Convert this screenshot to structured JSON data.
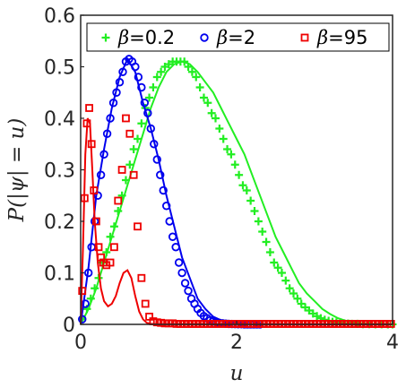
{
  "chart_data": {
    "type": "scatter",
    "xlabel": "u",
    "ylabel": "P(|ψ| = u)",
    "xlim": [
      0,
      4
    ],
    "ylim": [
      0,
      0.6
    ],
    "xticks": [
      "0",
      "2",
      "4"
    ],
    "yticks": [
      "0",
      "0.1",
      "0.2",
      "0.3",
      "0.4",
      "0.5",
      "0.6"
    ],
    "grid": false,
    "legend_placement": "top",
    "series": [
      {
        "name": "β=0.2",
        "marker": "plus",
        "color": "#22ee22",
        "points": [
          [
            0.02,
            0.01
          ],
          [
            0.08,
            0.03
          ],
          [
            0.13,
            0.05
          ],
          [
            0.18,
            0.07
          ],
          [
            0.23,
            0.09
          ],
          [
            0.28,
            0.12
          ],
          [
            0.33,
            0.14
          ],
          [
            0.38,
            0.17
          ],
          [
            0.43,
            0.19
          ],
          [
            0.48,
            0.22
          ],
          [
            0.53,
            0.25
          ],
          [
            0.58,
            0.28
          ],
          [
            0.63,
            0.31
          ],
          [
            0.68,
            0.34
          ],
          [
            0.73,
            0.36
          ],
          [
            0.78,
            0.39
          ],
          [
            0.83,
            0.42
          ],
          [
            0.88,
            0.44
          ],
          [
            0.93,
            0.46
          ],
          [
            0.98,
            0.48
          ],
          [
            1.03,
            0.49
          ],
          [
            1.08,
            0.5
          ],
          [
            1.13,
            0.505
          ],
          [
            1.18,
            0.51
          ],
          [
            1.23,
            0.51
          ],
          [
            1.28,
            0.51
          ],
          [
            1.33,
            0.51
          ],
          [
            1.38,
            0.5
          ],
          [
            1.43,
            0.49
          ],
          [
            1.48,
            0.48
          ],
          [
            1.53,
            0.46
          ],
          [
            1.58,
            0.44
          ],
          [
            1.63,
            0.43
          ],
          [
            1.68,
            0.41
          ],
          [
            1.73,
            0.4
          ],
          [
            1.78,
            0.38
          ],
          [
            1.83,
            0.36
          ],
          [
            1.88,
            0.34
          ],
          [
            1.93,
            0.33
          ],
          [
            1.98,
            0.31
          ],
          [
            2.03,
            0.29
          ],
          [
            2.08,
            0.27
          ],
          [
            2.13,
            0.26
          ],
          [
            2.18,
            0.24
          ],
          [
            2.23,
            0.22
          ],
          [
            2.28,
            0.2
          ],
          [
            2.33,
            0.18
          ],
          [
            2.38,
            0.16
          ],
          [
            2.43,
            0.14
          ],
          [
            2.48,
            0.12
          ],
          [
            2.53,
            0.11
          ],
          [
            2.58,
            0.1
          ],
          [
            2.63,
            0.085
          ],
          [
            2.68,
            0.07
          ],
          [
            2.73,
            0.06
          ],
          [
            2.78,
            0.05
          ],
          [
            2.83,
            0.04
          ],
          [
            2.88,
            0.033
          ],
          [
            2.93,
            0.027
          ],
          [
            2.98,
            0.021
          ],
          [
            3.03,
            0.016
          ],
          [
            3.08,
            0.012
          ],
          [
            3.13,
            0.009
          ],
          [
            3.18,
            0.007
          ],
          [
            3.23,
            0.005
          ],
          [
            3.28,
            0.004
          ],
          [
            3.33,
            0.003
          ],
          [
            3.38,
            0.002
          ],
          [
            3.43,
            0.0015
          ],
          [
            3.48,
            0.001
          ],
          [
            3.55,
            0.001
          ],
          [
            3.62,
            0.0005
          ],
          [
            3.7,
            0.0005
          ],
          [
            3.78,
            0.0003
          ],
          [
            3.86,
            0.0002
          ],
          [
            3.94,
            0.0001
          ],
          [
            4.0,
            0.0001
          ]
        ],
        "curve": [
          [
            0,
            0
          ],
          [
            0.1,
            0.03
          ],
          [
            0.2,
            0.07
          ],
          [
            0.3,
            0.12
          ],
          [
            0.4,
            0.17
          ],
          [
            0.5,
            0.22
          ],
          [
            0.6,
            0.27
          ],
          [
            0.7,
            0.32
          ],
          [
            0.8,
            0.37
          ],
          [
            0.9,
            0.42
          ],
          [
            1.0,
            0.46
          ],
          [
            1.1,
            0.49
          ],
          [
            1.2,
            0.505
          ],
          [
            1.3,
            0.51
          ],
          [
            1.4,
            0.505
          ],
          [
            1.5,
            0.49
          ],
          [
            1.6,
            0.47
          ],
          [
            1.7,
            0.45
          ],
          [
            1.8,
            0.42
          ],
          [
            1.9,
            0.39
          ],
          [
            2.0,
            0.36
          ],
          [
            2.1,
            0.33
          ],
          [
            2.2,
            0.29
          ],
          [
            2.3,
            0.25
          ],
          [
            2.4,
            0.21
          ],
          [
            2.5,
            0.17
          ],
          [
            2.6,
            0.14
          ],
          [
            2.7,
            0.11
          ],
          [
            2.8,
            0.08
          ],
          [
            2.9,
            0.06
          ],
          [
            3.0,
            0.045
          ],
          [
            3.1,
            0.03
          ],
          [
            3.2,
            0.02
          ],
          [
            3.3,
            0.012
          ],
          [
            3.4,
            0.007
          ],
          [
            3.5,
            0.004
          ],
          [
            3.6,
            0.002
          ],
          [
            3.8,
            0.0005
          ],
          [
            4.0,
            0.0001
          ]
        ]
      },
      {
        "name": "β=2",
        "marker": "circle",
        "color": "#0000ee",
        "points": [
          [
            0.02,
            0.01
          ],
          [
            0.06,
            0.04
          ],
          [
            0.1,
            0.1
          ],
          [
            0.14,
            0.15
          ],
          [
            0.18,
            0.2
          ],
          [
            0.22,
            0.25
          ],
          [
            0.26,
            0.29
          ],
          [
            0.3,
            0.33
          ],
          [
            0.34,
            0.37
          ],
          [
            0.38,
            0.4
          ],
          [
            0.42,
            0.43
          ],
          [
            0.46,
            0.45
          ],
          [
            0.5,
            0.47
          ],
          [
            0.54,
            0.49
          ],
          [
            0.58,
            0.51
          ],
          [
            0.62,
            0.515
          ],
          [
            0.66,
            0.51
          ],
          [
            0.7,
            0.5
          ],
          [
            0.74,
            0.48
          ],
          [
            0.78,
            0.46
          ],
          [
            0.82,
            0.43
          ],
          [
            0.86,
            0.41
          ],
          [
            0.9,
            0.38
          ],
          [
            0.94,
            0.35
          ],
          [
            0.98,
            0.32
          ],
          [
            1.02,
            0.29
          ],
          [
            1.06,
            0.26
          ],
          [
            1.1,
            0.23
          ],
          [
            1.14,
            0.2
          ],
          [
            1.18,
            0.17
          ],
          [
            1.22,
            0.15
          ],
          [
            1.26,
            0.12
          ],
          [
            1.3,
            0.1
          ],
          [
            1.34,
            0.08
          ],
          [
            1.38,
            0.065
          ],
          [
            1.42,
            0.05
          ],
          [
            1.46,
            0.04
          ],
          [
            1.5,
            0.03
          ],
          [
            1.54,
            0.022
          ],
          [
            1.58,
            0.016
          ],
          [
            1.62,
            0.012
          ],
          [
            1.66,
            0.008
          ],
          [
            1.7,
            0.006
          ],
          [
            1.74,
            0.004
          ],
          [
            1.78,
            0.003
          ],
          [
            1.82,
            0.002
          ],
          [
            1.86,
            0.0015
          ],
          [
            1.9,
            0.001
          ],
          [
            1.94,
            0.0007
          ],
          [
            1.98,
            0.0005
          ],
          [
            2.02,
            0.0004
          ],
          [
            2.06,
            0.0003
          ],
          [
            2.1,
            0.0002
          ],
          [
            2.14,
            0.0002
          ],
          [
            2.18,
            0.0001
          ],
          [
            2.22,
            0.0001
          ],
          [
            2.26,
            0.0001
          ],
          [
            2.3,
            0.0001
          ]
        ],
        "curve": [
          [
            0,
            0
          ],
          [
            0.1,
            0.11
          ],
          [
            0.2,
            0.25
          ],
          [
            0.3,
            0.34
          ],
          [
            0.4,
            0.42
          ],
          [
            0.5,
            0.48
          ],
          [
            0.6,
            0.515
          ],
          [
            0.7,
            0.49
          ],
          [
            0.8,
            0.43
          ],
          [
            0.9,
            0.38
          ],
          [
            1.0,
            0.32
          ],
          [
            1.1,
            0.25
          ],
          [
            1.2,
            0.19
          ],
          [
            1.3,
            0.13
          ],
          [
            1.4,
            0.09
          ],
          [
            1.5,
            0.05
          ],
          [
            1.6,
            0.03
          ],
          [
            1.7,
            0.015
          ],
          [
            1.8,
            0.008
          ],
          [
            1.9,
            0.004
          ],
          [
            2.0,
            0.002
          ],
          [
            2.2,
            0.0005
          ],
          [
            2.5,
            0.0001
          ],
          [
            4.0,
            0
          ]
        ]
      },
      {
        "name": "β=95",
        "marker": "square",
        "color": "#ee0000",
        "points": [
          [
            0.02,
            0.065
          ],
          [
            0.05,
            0.245
          ],
          [
            0.08,
            0.39
          ],
          [
            0.11,
            0.42
          ],
          [
            0.14,
            0.35
          ],
          [
            0.17,
            0.26
          ],
          [
            0.2,
            0.2
          ],
          [
            0.23,
            0.15
          ],
          [
            0.26,
            0.13
          ],
          [
            0.29,
            0.12
          ],
          [
            0.33,
            0.115
          ],
          [
            0.38,
            0.12
          ],
          [
            0.43,
            0.15
          ],
          [
            0.48,
            0.24
          ],
          [
            0.53,
            0.3
          ],
          [
            0.58,
            0.4
          ],
          [
            0.63,
            0.37
          ],
          [
            0.68,
            0.29
          ],
          [
            0.73,
            0.19
          ],
          [
            0.78,
            0.09
          ],
          [
            0.83,
            0.04
          ],
          [
            0.88,
            0.015
          ],
          [
            0.93,
            0.006
          ],
          [
            0.98,
            0.004
          ],
          [
            1.03,
            0.003
          ],
          [
            1.08,
            0.002
          ],
          [
            1.13,
            0.002
          ],
          [
            1.18,
            0.002
          ],
          [
            1.23,
            0.001
          ],
          [
            1.28,
            0.001
          ],
          [
            1.33,
            0.001
          ],
          [
            1.38,
            0.001
          ],
          [
            1.43,
            0.001
          ],
          [
            1.48,
            0.001
          ],
          [
            1.53,
            0.001
          ],
          [
            1.58,
            0.001
          ],
          [
            1.63,
            0.001
          ],
          [
            1.68,
            0.001
          ],
          [
            1.73,
            0.001
          ],
          [
            1.78,
            0.001
          ],
          [
            1.83,
            0.001
          ],
          [
            1.88,
            0.001
          ],
          [
            1.93,
            0.001
          ],
          [
            1.98,
            0.001
          ],
          [
            2.03,
            0.001
          ],
          [
            2.08,
            0.001
          ],
          [
            2.13,
            0.001
          ],
          [
            2.18,
            0.001
          ],
          [
            2.23,
            0.001
          ],
          [
            2.28,
            0.001
          ],
          [
            2.33,
            0.001
          ],
          [
            2.38,
            0.001
          ],
          [
            2.43,
            0.001
          ],
          [
            2.48,
            0.001
          ],
          [
            2.53,
            0.001
          ],
          [
            2.58,
            0.001
          ],
          [
            2.63,
            0.001
          ],
          [
            2.68,
            0.001
          ],
          [
            2.73,
            0.001
          ],
          [
            2.78,
            0.001
          ],
          [
            2.83,
            0.001
          ],
          [
            2.88,
            0.001
          ],
          [
            2.93,
            0.001
          ],
          [
            2.98,
            0.001
          ],
          [
            3.03,
            0.001
          ],
          [
            3.08,
            0.001
          ],
          [
            3.13,
            0.001
          ],
          [
            3.18,
            0.001
          ],
          [
            3.23,
            0.001
          ],
          [
            3.28,
            0.001
          ],
          [
            3.33,
            0.001
          ],
          [
            3.38,
            0.001
          ],
          [
            3.43,
            0.001
          ],
          [
            3.48,
            0.001
          ],
          [
            3.53,
            0.001
          ],
          [
            3.58,
            0.001
          ],
          [
            3.63,
            0.001
          ],
          [
            3.68,
            0.001
          ],
          [
            3.73,
            0.001
          ],
          [
            3.78,
            0.001
          ],
          [
            3.83,
            0.001
          ],
          [
            3.88,
            0.001
          ],
          [
            3.93,
            0.001
          ],
          [
            3.98,
            0.001
          ]
        ],
        "curve": [
          [
            0,
            0
          ],
          [
            0.03,
            0.15
          ],
          [
            0.06,
            0.33
          ],
          [
            0.09,
            0.4
          ],
          [
            0.12,
            0.39
          ],
          [
            0.15,
            0.3
          ],
          [
            0.18,
            0.2
          ],
          [
            0.22,
            0.12
          ],
          [
            0.26,
            0.07
          ],
          [
            0.3,
            0.045
          ],
          [
            0.35,
            0.035
          ],
          [
            0.4,
            0.04
          ],
          [
            0.45,
            0.055
          ],
          [
            0.5,
            0.08
          ],
          [
            0.55,
            0.1
          ],
          [
            0.6,
            0.105
          ],
          [
            0.65,
            0.09
          ],
          [
            0.7,
            0.055
          ],
          [
            0.75,
            0.025
          ],
          [
            0.8,
            0.01
          ],
          [
            0.85,
            0.003
          ],
          [
            0.9,
            0.001
          ],
          [
            1.0,
            0.0005
          ],
          [
            4.0,
            0
          ]
        ]
      }
    ]
  }
}
